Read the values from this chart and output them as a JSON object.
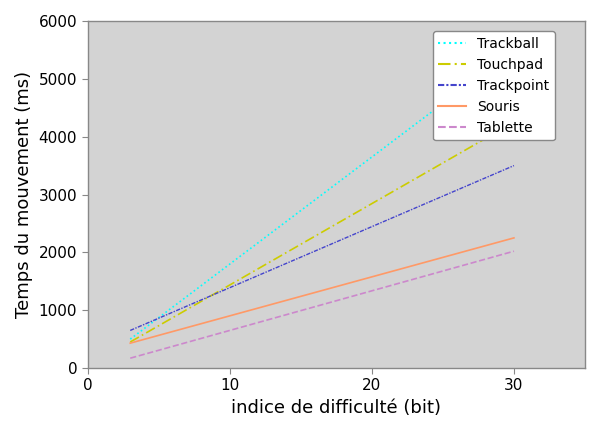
{
  "title": "",
  "xlabel": "indice de difficulté (bit)",
  "ylabel": "Temps du mouvement (ms)",
  "xlim": [
    0,
    35
  ],
  "ylim": [
    0,
    6000
  ],
  "xticks": [
    0,
    10,
    20,
    30
  ],
  "yticks": [
    0,
    1000,
    2000,
    3000,
    4000,
    5000,
    6000
  ],
  "background_color": "#d3d3d3",
  "lines": [
    {
      "label": "Trackball",
      "x": [
        3,
        30
      ],
      "y": [
        500,
        5500
      ],
      "color": "#00ffff",
      "linestyle": "dotted",
      "linewidth": 1.2
    },
    {
      "label": "Touchpad",
      "x": [
        3,
        30
      ],
      "y": [
        450,
        4250
      ],
      "color": "#cccc00",
      "linestyle": "dashdot",
      "linewidth": 1.2
    },
    {
      "label": "Trackpoint",
      "x": [
        3,
        30
      ],
      "y": [
        650,
        3500
      ],
      "color": "#4444cc",
      "linestyle": "dashdot",
      "linewidth": 1.0
    },
    {
      "label": "Souris",
      "x": [
        3,
        30
      ],
      "y": [
        430,
        2250
      ],
      "color": "#ff9966",
      "linestyle": "solid",
      "linewidth": 1.2
    },
    {
      "label": "Tablette",
      "x": [
        3,
        30
      ],
      "y": [
        170,
        2020
      ],
      "color": "#cc88cc",
      "linestyle": "dashed",
      "linewidth": 1.2
    }
  ],
  "legend_fontsize": 10,
  "axis_fontsize": 13,
  "tick_fontsize": 11
}
